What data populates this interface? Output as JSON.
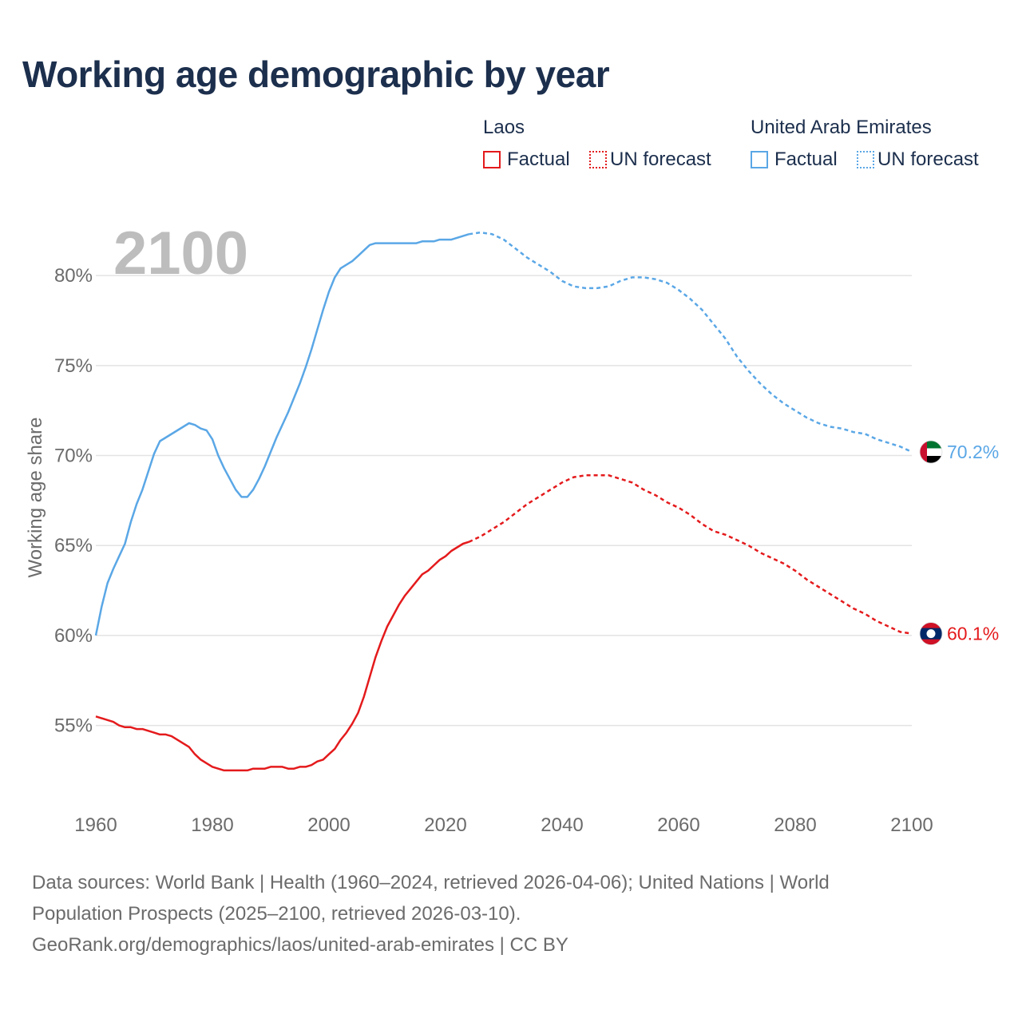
{
  "title": "Working age demographic by year",
  "legend": {
    "groups": [
      {
        "country": "Laos",
        "color": "#e41a1c",
        "factual_label": "Factual",
        "forecast_label": "UN forecast"
      },
      {
        "country": "United Arab Emirates",
        "color": "#5aa7e6",
        "factual_label": "Factual",
        "forecast_label": "UN forecast"
      }
    ]
  },
  "footer": {
    "line1": "Data sources: World Bank | Health (1960–2024, retrieved 2026-04-06); United Nations | World",
    "line2": "Population Prospects (2025–2100, retrieved 2026-03-10).",
    "line3": "GeoRank.org/demographics/laos/united-arab-emirates | CC BY"
  },
  "chart_data": {
    "type": "line",
    "title": "Working age demographic by year",
    "year_watermark": "2100",
    "xlabel": "",
    "ylabel": "Working age share",
    "xlim": [
      1960,
      2100
    ],
    "ylim": [
      50.5,
      84
    ],
    "x_ticks": [
      "1960",
      "1980",
      "2000",
      "2020",
      "2040",
      "2060",
      "2080",
      "2100"
    ],
    "y_ticks": [
      {
        "value": 55,
        "label": "55%"
      },
      {
        "value": 60,
        "label": "60%"
      },
      {
        "value": 65,
        "label": "65%"
      },
      {
        "value": 70,
        "label": "70%"
      },
      {
        "value": 75,
        "label": "75%"
      },
      {
        "value": 80,
        "label": "80%"
      }
    ],
    "grid": true,
    "series": [
      {
        "name": "Laos",
        "color": "#e41a1c",
        "end_label": "60.1%",
        "factual": {
          "x": [
            1960,
            1962,
            1963,
            1964,
            1965,
            1966,
            1967,
            1968,
            1969,
            1970,
            1971,
            1972,
            1973,
            1974,
            1975,
            1976,
            1977,
            1978,
            1979,
            1980,
            1981,
            1982,
            1983,
            1984,
            1985,
            1986,
            1987,
            1988,
            1989,
            1990,
            1991,
            1992,
            1993,
            1994,
            1995,
            1996,
            1997,
            1998,
            1999,
            2000,
            2001,
            2002,
            2003,
            2004,
            2005,
            2006,
            2007,
            2008,
            2009,
            2010,
            2011,
            2012,
            2013,
            2014,
            2015,
            2016,
            2017,
            2018,
            2019,
            2020,
            2021,
            2022,
            2023,
            2024
          ],
          "y": [
            55.5,
            55.3,
            55.2,
            55.0,
            54.9,
            54.9,
            54.8,
            54.8,
            54.7,
            54.6,
            54.5,
            54.5,
            54.4,
            54.2,
            54.0,
            53.8,
            53.4,
            53.1,
            52.9,
            52.7,
            52.6,
            52.5,
            52.5,
            52.5,
            52.5,
            52.5,
            52.6,
            52.6,
            52.6,
            52.7,
            52.7,
            52.7,
            52.6,
            52.6,
            52.7,
            52.7,
            52.8,
            53.0,
            53.1,
            53.4,
            53.7,
            54.2,
            54.6,
            55.1,
            55.7,
            56.6,
            57.7,
            58.8,
            59.7,
            60.5,
            61.1,
            61.7,
            62.2,
            62.6,
            63.0,
            63.4,
            63.6,
            63.9,
            64.2,
            64.4,
            64.7,
            64.9,
            65.1,
            65.2
          ]
        },
        "forecast": {
          "x": [
            2024,
            2026,
            2028,
            2030,
            2032,
            2034,
            2036,
            2038,
            2040,
            2042,
            2044,
            2046,
            2048,
            2050,
            2052,
            2054,
            2056,
            2058,
            2060,
            2062,
            2064,
            2066,
            2068,
            2070,
            2072,
            2074,
            2076,
            2078,
            2080,
            2082,
            2084,
            2086,
            2088,
            2090,
            2092,
            2094,
            2096,
            2098,
            2100
          ],
          "y": [
            65.2,
            65.5,
            65.9,
            66.3,
            66.8,
            67.3,
            67.7,
            68.1,
            68.5,
            68.8,
            68.9,
            68.9,
            68.9,
            68.7,
            68.5,
            68.1,
            67.8,
            67.4,
            67.1,
            66.7,
            66.2,
            65.8,
            65.6,
            65.3,
            65.0,
            64.6,
            64.3,
            64.0,
            63.6,
            63.1,
            62.7,
            62.3,
            61.9,
            61.5,
            61.2,
            60.8,
            60.5,
            60.2,
            60.1
          ]
        }
      },
      {
        "name": "United Arab Emirates",
        "color": "#5aa7e6",
        "end_label": "70.2%",
        "factual": {
          "x": [
            1960,
            1961,
            1962,
            1963,
            1964,
            1965,
            1966,
            1967,
            1968,
            1969,
            1970,
            1971,
            1972,
            1973,
            1974,
            1975,
            1976,
            1977,
            1978,
            1979,
            1980,
            1981,
            1982,
            1983,
            1984,
            1985,
            1986,
            1987,
            1988,
            1989,
            1990,
            1991,
            1992,
            1993,
            1994,
            1995,
            1996,
            1997,
            1998,
            1999,
            2000,
            2001,
            2002,
            2003,
            2004,
            2005,
            2006,
            2007,
            2008,
            2009,
            2010,
            2011,
            2012,
            2013,
            2014,
            2015,
            2016,
            2017,
            2018,
            2019,
            2020,
            2021,
            2022,
            2023,
            2024
          ],
          "y": [
            60.0,
            61.6,
            62.9,
            63.7,
            64.4,
            65.1,
            66.3,
            67.3,
            68.1,
            69.1,
            70.1,
            70.8,
            71.0,
            71.2,
            71.4,
            71.6,
            71.8,
            71.7,
            71.5,
            71.4,
            70.9,
            70.0,
            69.3,
            68.7,
            68.1,
            67.7,
            67.7,
            68.1,
            68.7,
            69.4,
            70.2,
            71.0,
            71.7,
            72.4,
            73.2,
            74.0,
            74.9,
            75.9,
            77.0,
            78.1,
            79.1,
            79.9,
            80.4,
            80.6,
            80.8,
            81.1,
            81.4,
            81.7,
            81.8,
            81.8,
            81.8,
            81.8,
            81.8,
            81.8,
            81.8,
            81.8,
            81.9,
            81.9,
            81.9,
            82.0,
            82.0,
            82.0,
            82.1,
            82.2,
            82.3
          ]
        },
        "forecast": {
          "x": [
            2024,
            2026,
            2028,
            2030,
            2032,
            2034,
            2036,
            2038,
            2040,
            2042,
            2044,
            2046,
            2048,
            2050,
            2052,
            2054,
            2056,
            2058,
            2060,
            2062,
            2064,
            2066,
            2068,
            2070,
            2072,
            2074,
            2076,
            2078,
            2080,
            2082,
            2084,
            2086,
            2088,
            2090,
            2092,
            2094,
            2096,
            2098,
            2100
          ],
          "y": [
            82.3,
            82.4,
            82.3,
            82.0,
            81.5,
            81.0,
            80.6,
            80.2,
            79.7,
            79.4,
            79.3,
            79.3,
            79.4,
            79.7,
            79.9,
            79.9,
            79.8,
            79.6,
            79.2,
            78.7,
            78.1,
            77.3,
            76.5,
            75.5,
            74.7,
            74.0,
            73.4,
            72.9,
            72.5,
            72.1,
            71.8,
            71.6,
            71.5,
            71.3,
            71.2,
            70.9,
            70.7,
            70.5,
            70.2
          ]
        }
      }
    ]
  }
}
